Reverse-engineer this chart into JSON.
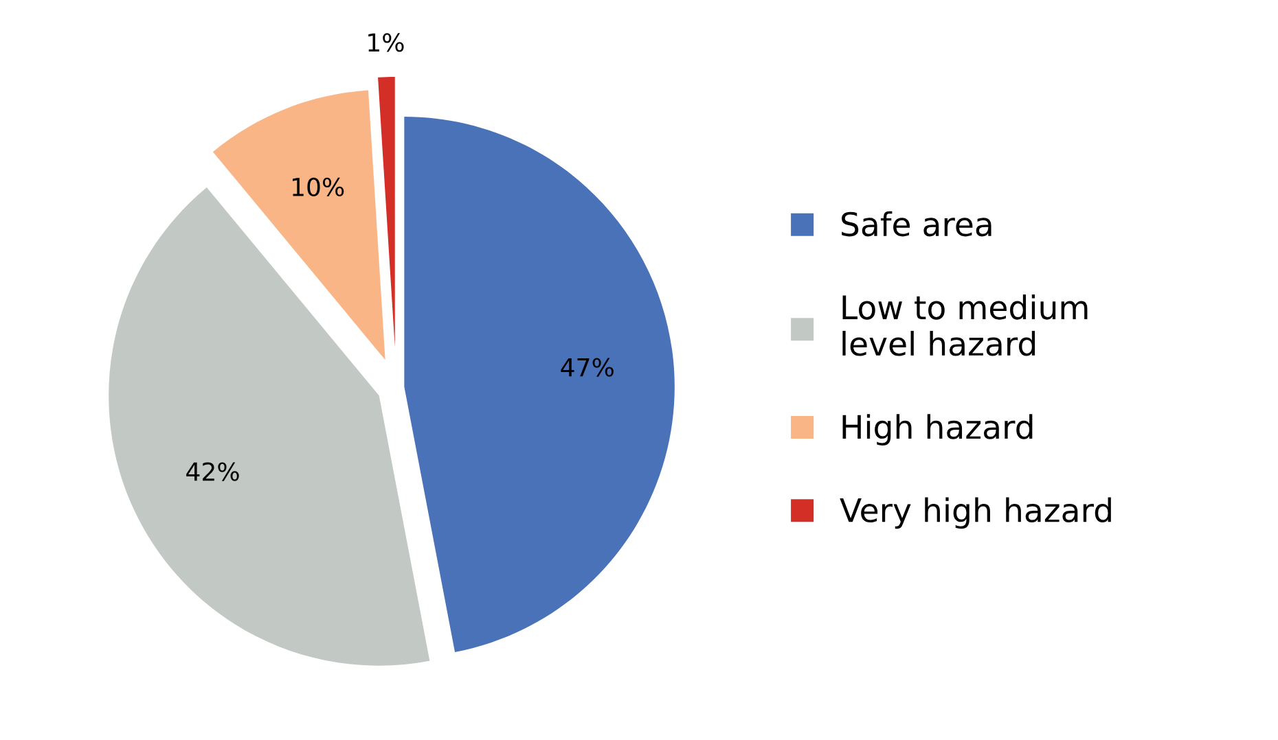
{
  "chart_data": {
    "type": "pie",
    "categories": [
      "Safe area",
      "Low to medium\nlevel hazard",
      "High hazard",
      "Very high hazard"
    ],
    "values": [
      47,
      42,
      10,
      1
    ],
    "colors": [
      "#4a72b8",
      "#c2c8c3",
      "#f9b586",
      "#d42f26"
    ],
    "value_labels": [
      "47%",
      "42%",
      "10%",
      "1%"
    ],
    "legend": "right"
  }
}
